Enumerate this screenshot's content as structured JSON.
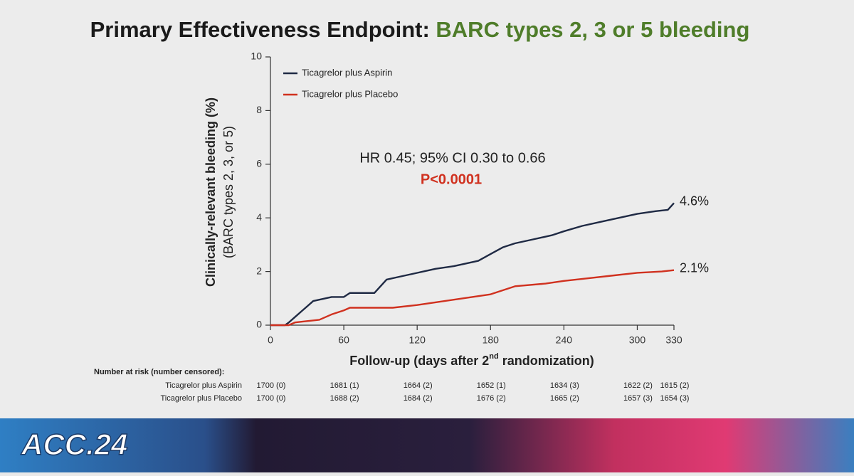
{
  "chart_data": {
    "type": "line",
    "title": "Primary Effectiveness Endpoint:",
    "title_highlight": "BARC types 2, 3 or 5 bleeding",
    "y_label": "Clinically-relevant bleeding (%)",
    "y_label_sub": "(BARC types 2, 3, or 5)",
    "x_label": {
      "before": "Follow-up (days after 2",
      "superscript": "nd",
      "after": " randomization)"
    },
    "xlim": [
      0,
      330
    ],
    "xticks": [
      0,
      60,
      120,
      180,
      240,
      300,
      330
    ],
    "ylim": [
      0,
      10
    ],
    "yticks": [
      0,
      2,
      4,
      6,
      8,
      10
    ],
    "legend": "upper left",
    "series": [
      {
        "name": "Ticagrelor plus Aspirin",
        "color": "#1f2a44",
        "x": [
          0,
          12,
          15,
          20,
          25,
          30,
          35,
          40,
          45,
          50,
          60,
          65,
          85,
          95,
          105,
          120,
          135,
          150,
          160,
          170,
          180,
          190,
          200,
          215,
          230,
          240,
          255,
          270,
          285,
          300,
          315,
          325,
          330
        ],
        "values": [
          0,
          0,
          0.1,
          0.3,
          0.5,
          0.7,
          0.9,
          0.95,
          1.0,
          1.05,
          1.05,
          1.2,
          1.2,
          1.7,
          1.8,
          1.95,
          2.1,
          2.2,
          2.3,
          2.4,
          2.65,
          2.9,
          3.05,
          3.2,
          3.35,
          3.5,
          3.7,
          3.85,
          4.0,
          4.15,
          4.25,
          4.3,
          4.55
        ],
        "end_label": {
          "value": 4.6,
          "label": "4.6%"
        }
      },
      {
        "name": "Ticagrelor plus Placebo",
        "color": "#d0311f",
        "x": [
          0,
          15,
          20,
          40,
          50,
          60,
          65,
          100,
          120,
          135,
          150,
          165,
          180,
          190,
          200,
          225,
          240,
          260,
          280,
          300,
          320,
          330
        ],
        "values": [
          0,
          0,
          0.1,
          0.2,
          0.4,
          0.55,
          0.65,
          0.65,
          0.75,
          0.85,
          0.95,
          1.05,
          1.15,
          1.3,
          1.45,
          1.55,
          1.65,
          1.75,
          1.85,
          1.95,
          2.0,
          2.05
        ],
        "end_label": {
          "value": 2.1,
          "label": "2.1%"
        }
      }
    ],
    "annotations": [
      {
        "text": "HR 0.45; 95% CI 0.30 to 0.66",
        "color": "#222222"
      },
      {
        "text": "P<0.0001",
        "color": "#d0311f"
      }
    ],
    "risk_table": {
      "title": "Number at risk (number censored):",
      "rows": [
        {
          "name": "Ticagrelor plus Aspirin",
          "cells": [
            "1700 (0)",
            "1681 (1)",
            "1664 (2)",
            "1652 (1)",
            "1634 (3)",
            "1622 (2)",
            "1615 (2)"
          ]
        },
        {
          "name": "Ticagrelor plus Placebo",
          "cells": [
            "1700 (0)",
            "1688 (2)",
            "1684 (2)",
            "1676 (2)",
            "1665 (2)",
            "1657 (3)",
            "1654 (3)"
          ]
        }
      ]
    }
  },
  "footer": {
    "logo": "ACC.24"
  }
}
